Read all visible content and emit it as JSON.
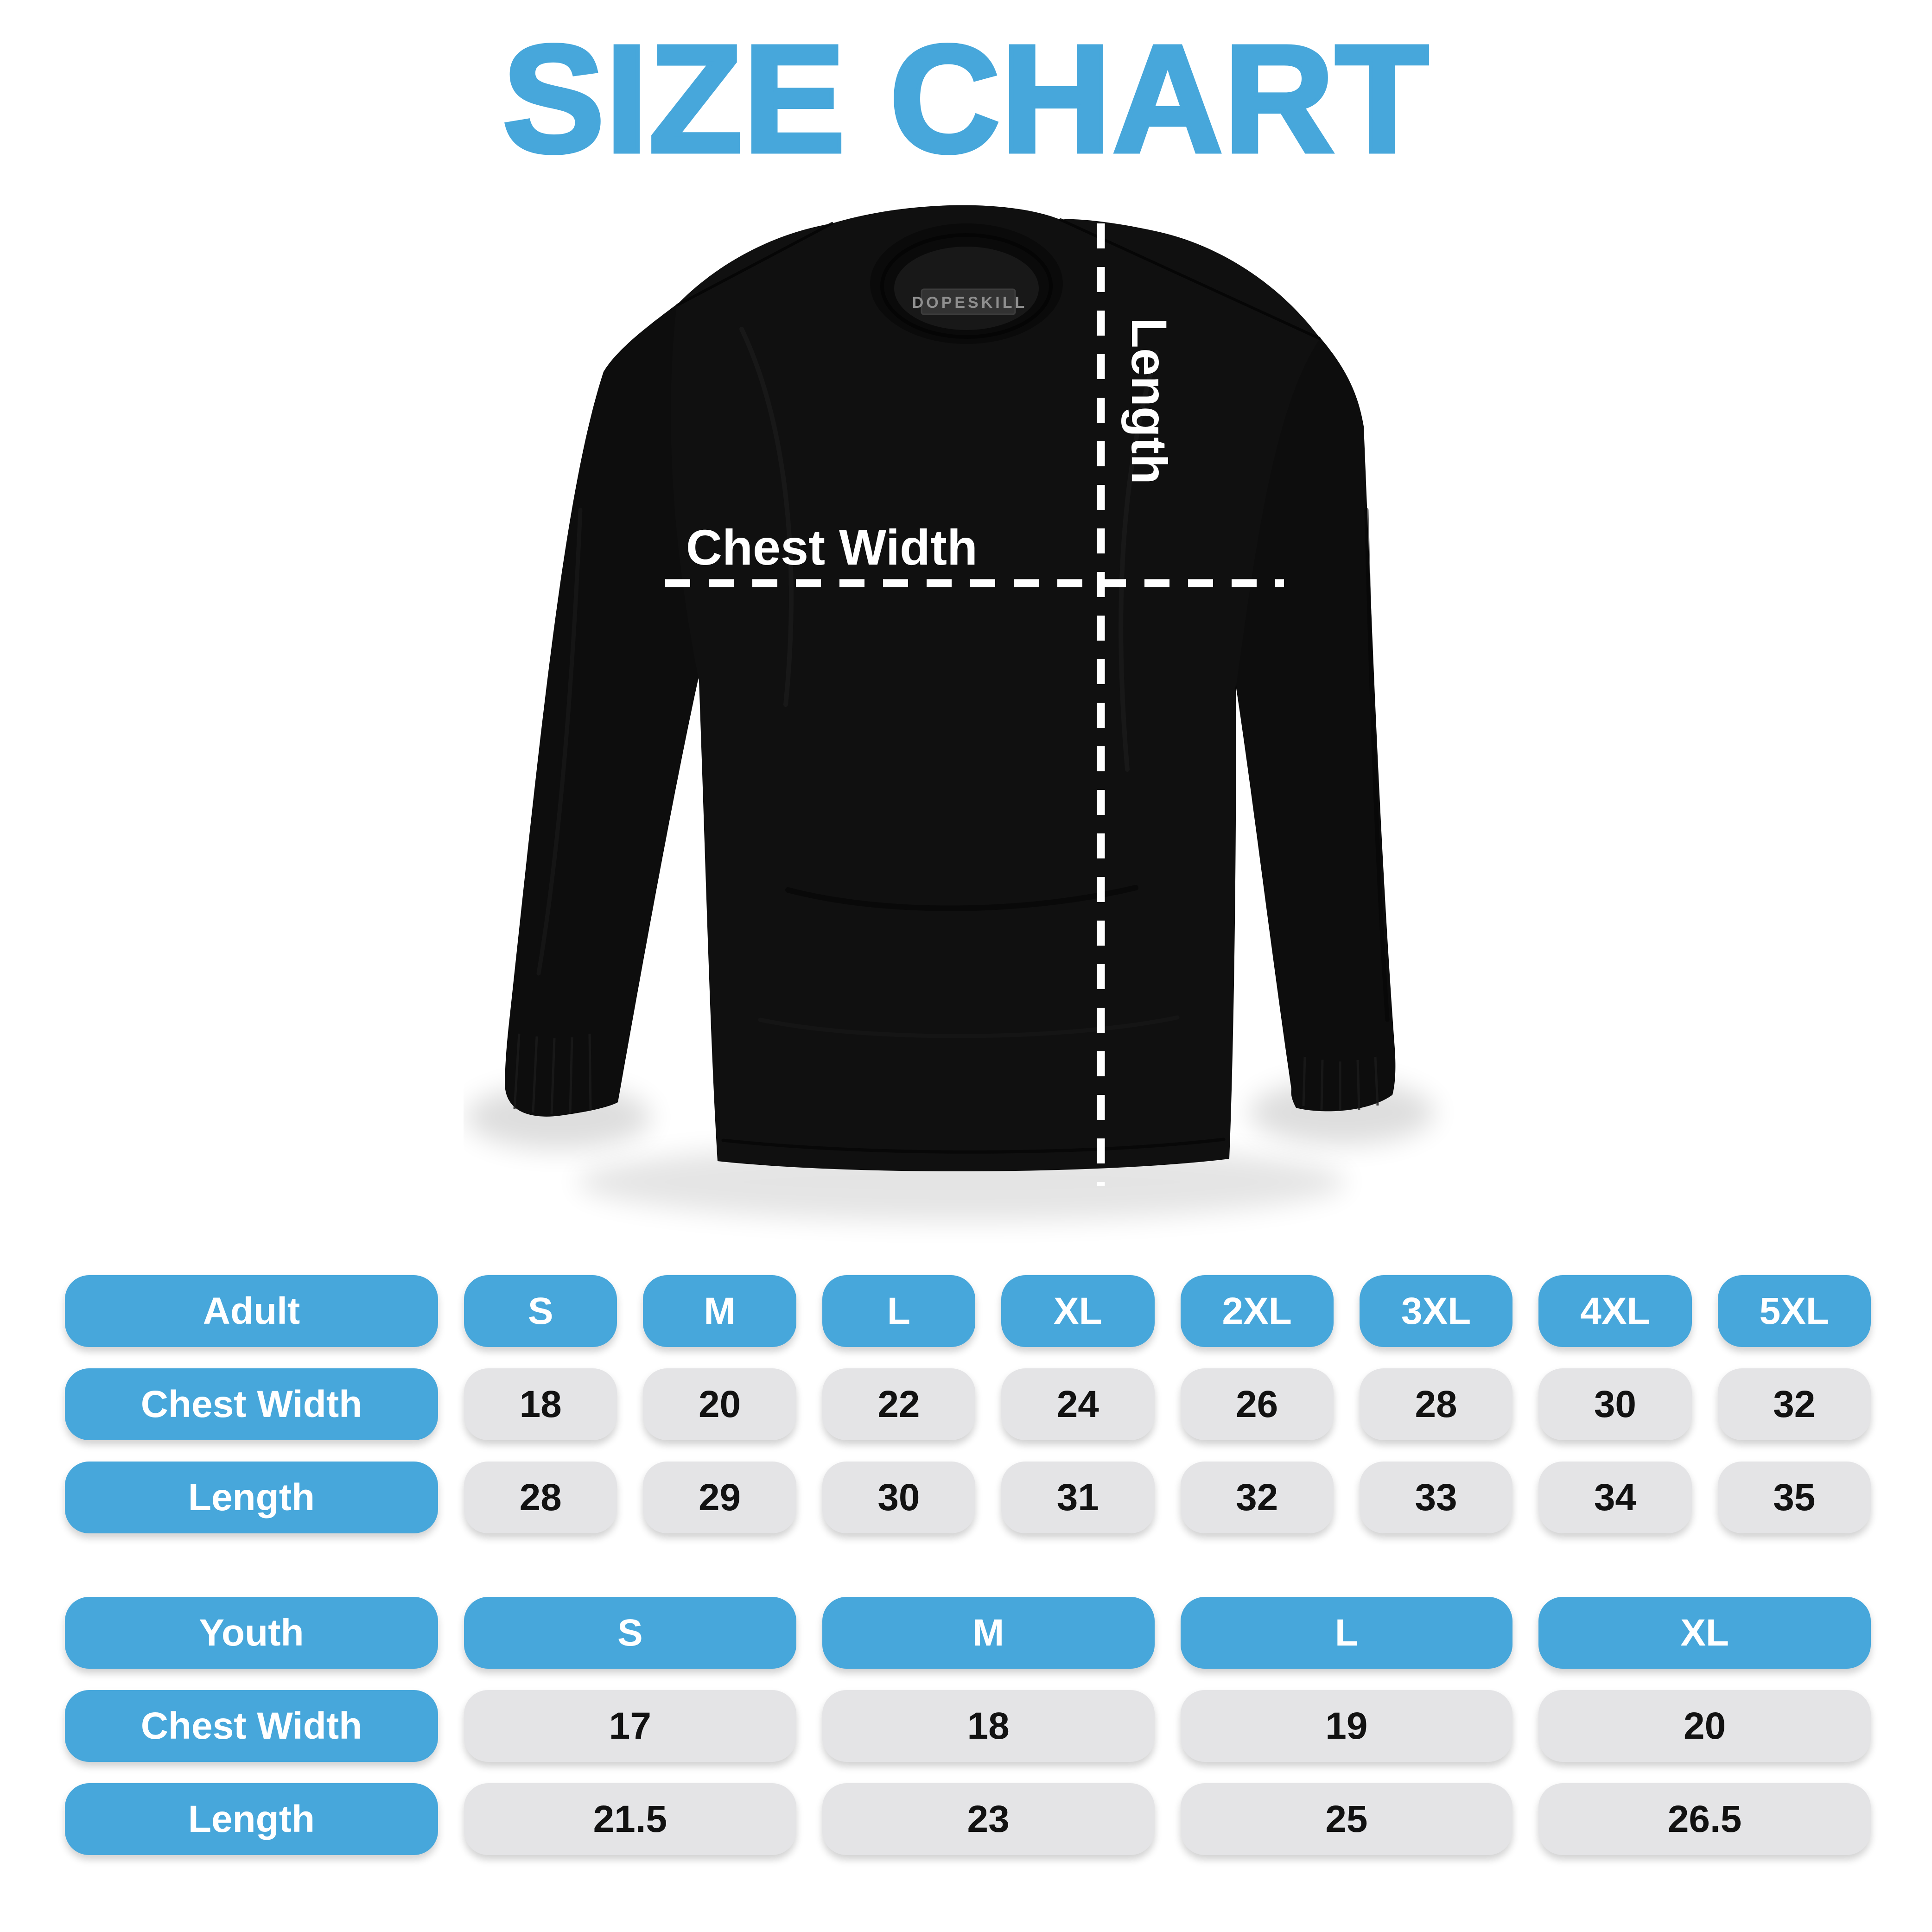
{
  "title": "SIZE CHART",
  "diagram": {
    "brand_tag": "DOPESKILL",
    "chest_width_label": "Chest Width",
    "length_label": "Length"
  },
  "chart_data": [
    {
      "type": "table",
      "columns": [
        "Adult",
        "S",
        "M",
        "L",
        "XL",
        "2XL",
        "3XL",
        "4XL",
        "5XL"
      ],
      "rows": [
        [
          "Chest Width",
          18,
          20,
          22,
          24,
          26,
          28,
          30,
          32
        ],
        [
          "Length",
          28,
          29,
          30,
          31,
          32,
          33,
          34,
          35
        ]
      ]
    },
    {
      "type": "table",
      "columns": [
        "Youth",
        "S",
        "M",
        "L",
        "XL"
      ],
      "rows": [
        [
          "Chest Width",
          17,
          18,
          19,
          20
        ],
        [
          "Length",
          21.5,
          23,
          25,
          26.5
        ]
      ]
    }
  ],
  "colors": {
    "accent_blue": "#47a7db",
    "pill_gray": "#e4e4e6",
    "shirt_black": "#101010",
    "dimension_line_white": "#ffffff",
    "value_text": "#121212"
  }
}
